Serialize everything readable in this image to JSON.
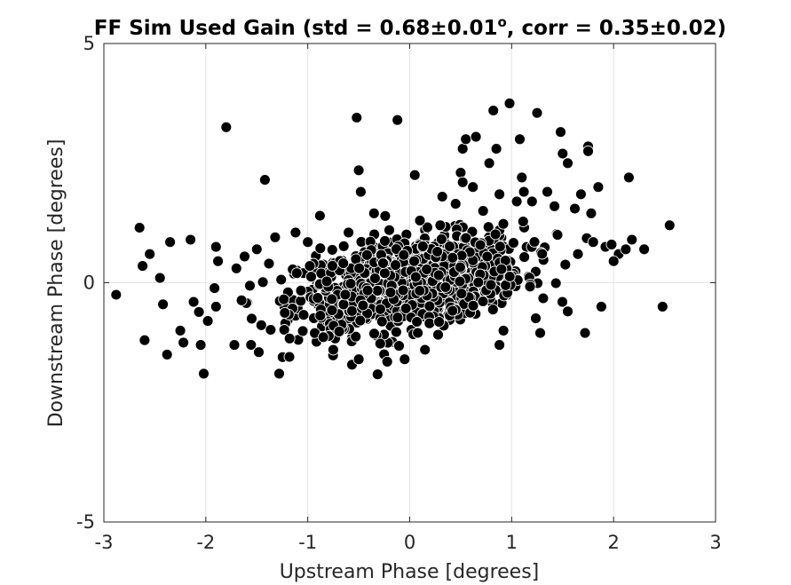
{
  "chart_data": {
    "type": "scatter",
    "title_main": "FF Sim Used Gain (std = 0.68±0.01",
    "title_sup": "o",
    "title_rest": ", corr = 0.35±0.02)",
    "xlabel": "Upstream Phase [degrees]",
    "ylabel": "Downstream Phase [degrees]",
    "xlim": [
      -3,
      3
    ],
    "ylim": [
      -5,
      5
    ],
    "xticks": [
      -3,
      -2,
      -1,
      0,
      1,
      2,
      3
    ],
    "xtick_labels": [
      "-3",
      "-2",
      "-1",
      "0",
      "1",
      "2",
      "3"
    ],
    "yticks": [
      -5,
      0,
      5
    ],
    "ytick_labels": [
      "-5",
      "0",
      "5"
    ],
    "grid": true,
    "marker_color": "#000000",
    "marker_edge_color": "#ffffff",
    "n_random_fill": 1100,
    "random_fill_std_x": 0.55,
    "random_fill_std_y": 0.45,
    "random_fill_slope": 0.33,
    "points": [
      [
        -2.88,
        -0.25
      ],
      [
        -2.65,
        1.15
      ],
      [
        -2.62,
        0.35
      ],
      [
        -2.6,
        -1.2
      ],
      [
        -2.55,
        0.6
      ],
      [
        -2.45,
        0.1
      ],
      [
        -2.42,
        -0.45
      ],
      [
        -2.38,
        -1.5
      ],
      [
        -2.35,
        0.85
      ],
      [
        -2.25,
        -1.0
      ],
      [
        -2.22,
        -1.25
      ],
      [
        -2.15,
        0.9
      ],
      [
        -2.12,
        -0.4
      ],
      [
        -2.05,
        -1.3
      ],
      [
        -2.02,
        -1.9
      ],
      [
        -1.98,
        -0.8
      ],
      [
        -1.9,
        0.75
      ],
      [
        -1.88,
        0.45
      ],
      [
        -1.8,
        3.25
      ],
      [
        -1.72,
        -1.3
      ],
      [
        -1.62,
        0.55
      ],
      [
        -1.55,
        -0.75
      ],
      [
        -1.48,
        -1.45
      ],
      [
        -1.42,
        2.15
      ],
      [
        -1.38,
        0.4
      ],
      [
        -1.32,
        0.95
      ],
      [
        -1.28,
        -1.9
      ],
      [
        -1.18,
        -1.55
      ],
      [
        -1.12,
        1.05
      ],
      [
        -0.98,
        0.35
      ],
      [
        -0.88,
        1.4
      ],
      [
        -0.75,
        -1.4
      ],
      [
        -0.52,
        3.45
      ],
      [
        -0.5,
        2.35
      ],
      [
        -0.48,
        1.9
      ],
      [
        -0.5,
        -1.6
      ],
      [
        -0.35,
        1.45
      ],
      [
        -0.22,
        -1.65
      ],
      [
        -0.12,
        3.4
      ],
      [
        -0.05,
        -1.6
      ],
      [
        0.05,
        2.25
      ],
      [
        0.15,
        -1.4
      ],
      [
        0.32,
        1.8
      ],
      [
        0.45,
        1.65
      ],
      [
        0.5,
        2.3
      ],
      [
        0.52,
        2.1
      ],
      [
        0.52,
        2.8
      ],
      [
        0.55,
        3.0
      ],
      [
        0.62,
        2.0
      ],
      [
        0.65,
        3.05
      ],
      [
        0.72,
        1.5
      ],
      [
        0.78,
        2.5
      ],
      [
        0.82,
        3.6
      ],
      [
        0.85,
        2.8
      ],
      [
        0.88,
        1.85
      ],
      [
        0.88,
        -1.3
      ],
      [
        0.92,
        -1.0
      ],
      [
        0.98,
        3.75
      ],
      [
        1.05,
        1.7
      ],
      [
        1.08,
        3.0
      ],
      [
        1.1,
        2.2
      ],
      [
        1.12,
        1.9
      ],
      [
        1.2,
        1.7
      ],
      [
        1.25,
        3.55
      ],
      [
        1.28,
        -1.05
      ],
      [
        1.35,
        1.9
      ],
      [
        1.42,
        1.6
      ],
      [
        1.48,
        3.15
      ],
      [
        1.5,
        2.7
      ],
      [
        1.55,
        2.5
      ],
      [
        1.55,
        -0.6
      ],
      [
        1.62,
        1.55
      ],
      [
        1.68,
        1.85
      ],
      [
        1.72,
        -1.05
      ],
      [
        1.75,
        2.85
      ],
      [
        1.75,
        2.75
      ],
      [
        1.78,
        1.45
      ],
      [
        1.8,
        0.85
      ],
      [
        1.85,
        2.0
      ],
      [
        1.88,
        -0.5
      ],
      [
        1.92,
        0.75
      ],
      [
        1.98,
        0.8
      ],
      [
        2.05,
        0.6
      ],
      [
        2.12,
        0.7
      ],
      [
        2.15,
        2.2
      ],
      [
        2.18,
        0.9
      ],
      [
        2.3,
        0.7
      ],
      [
        2.48,
        -0.5
      ],
      [
        2.55,
        1.2
      ],
      [
        2.0,
        0.45
      ],
      [
        1.65,
        0.6
      ],
      [
        1.45,
        1.0
      ],
      [
        0.3,
        1.2
      ],
      [
        0.1,
        1.3
      ],
      [
        -0.2,
        1.1
      ],
      [
        -0.6,
        1.05
      ],
      [
        -1.0,
        0.85
      ],
      [
        -1.5,
        0.7
      ],
      [
        -1.7,
        0.3
      ],
      [
        -1.9,
        -0.5
      ]
    ]
  }
}
